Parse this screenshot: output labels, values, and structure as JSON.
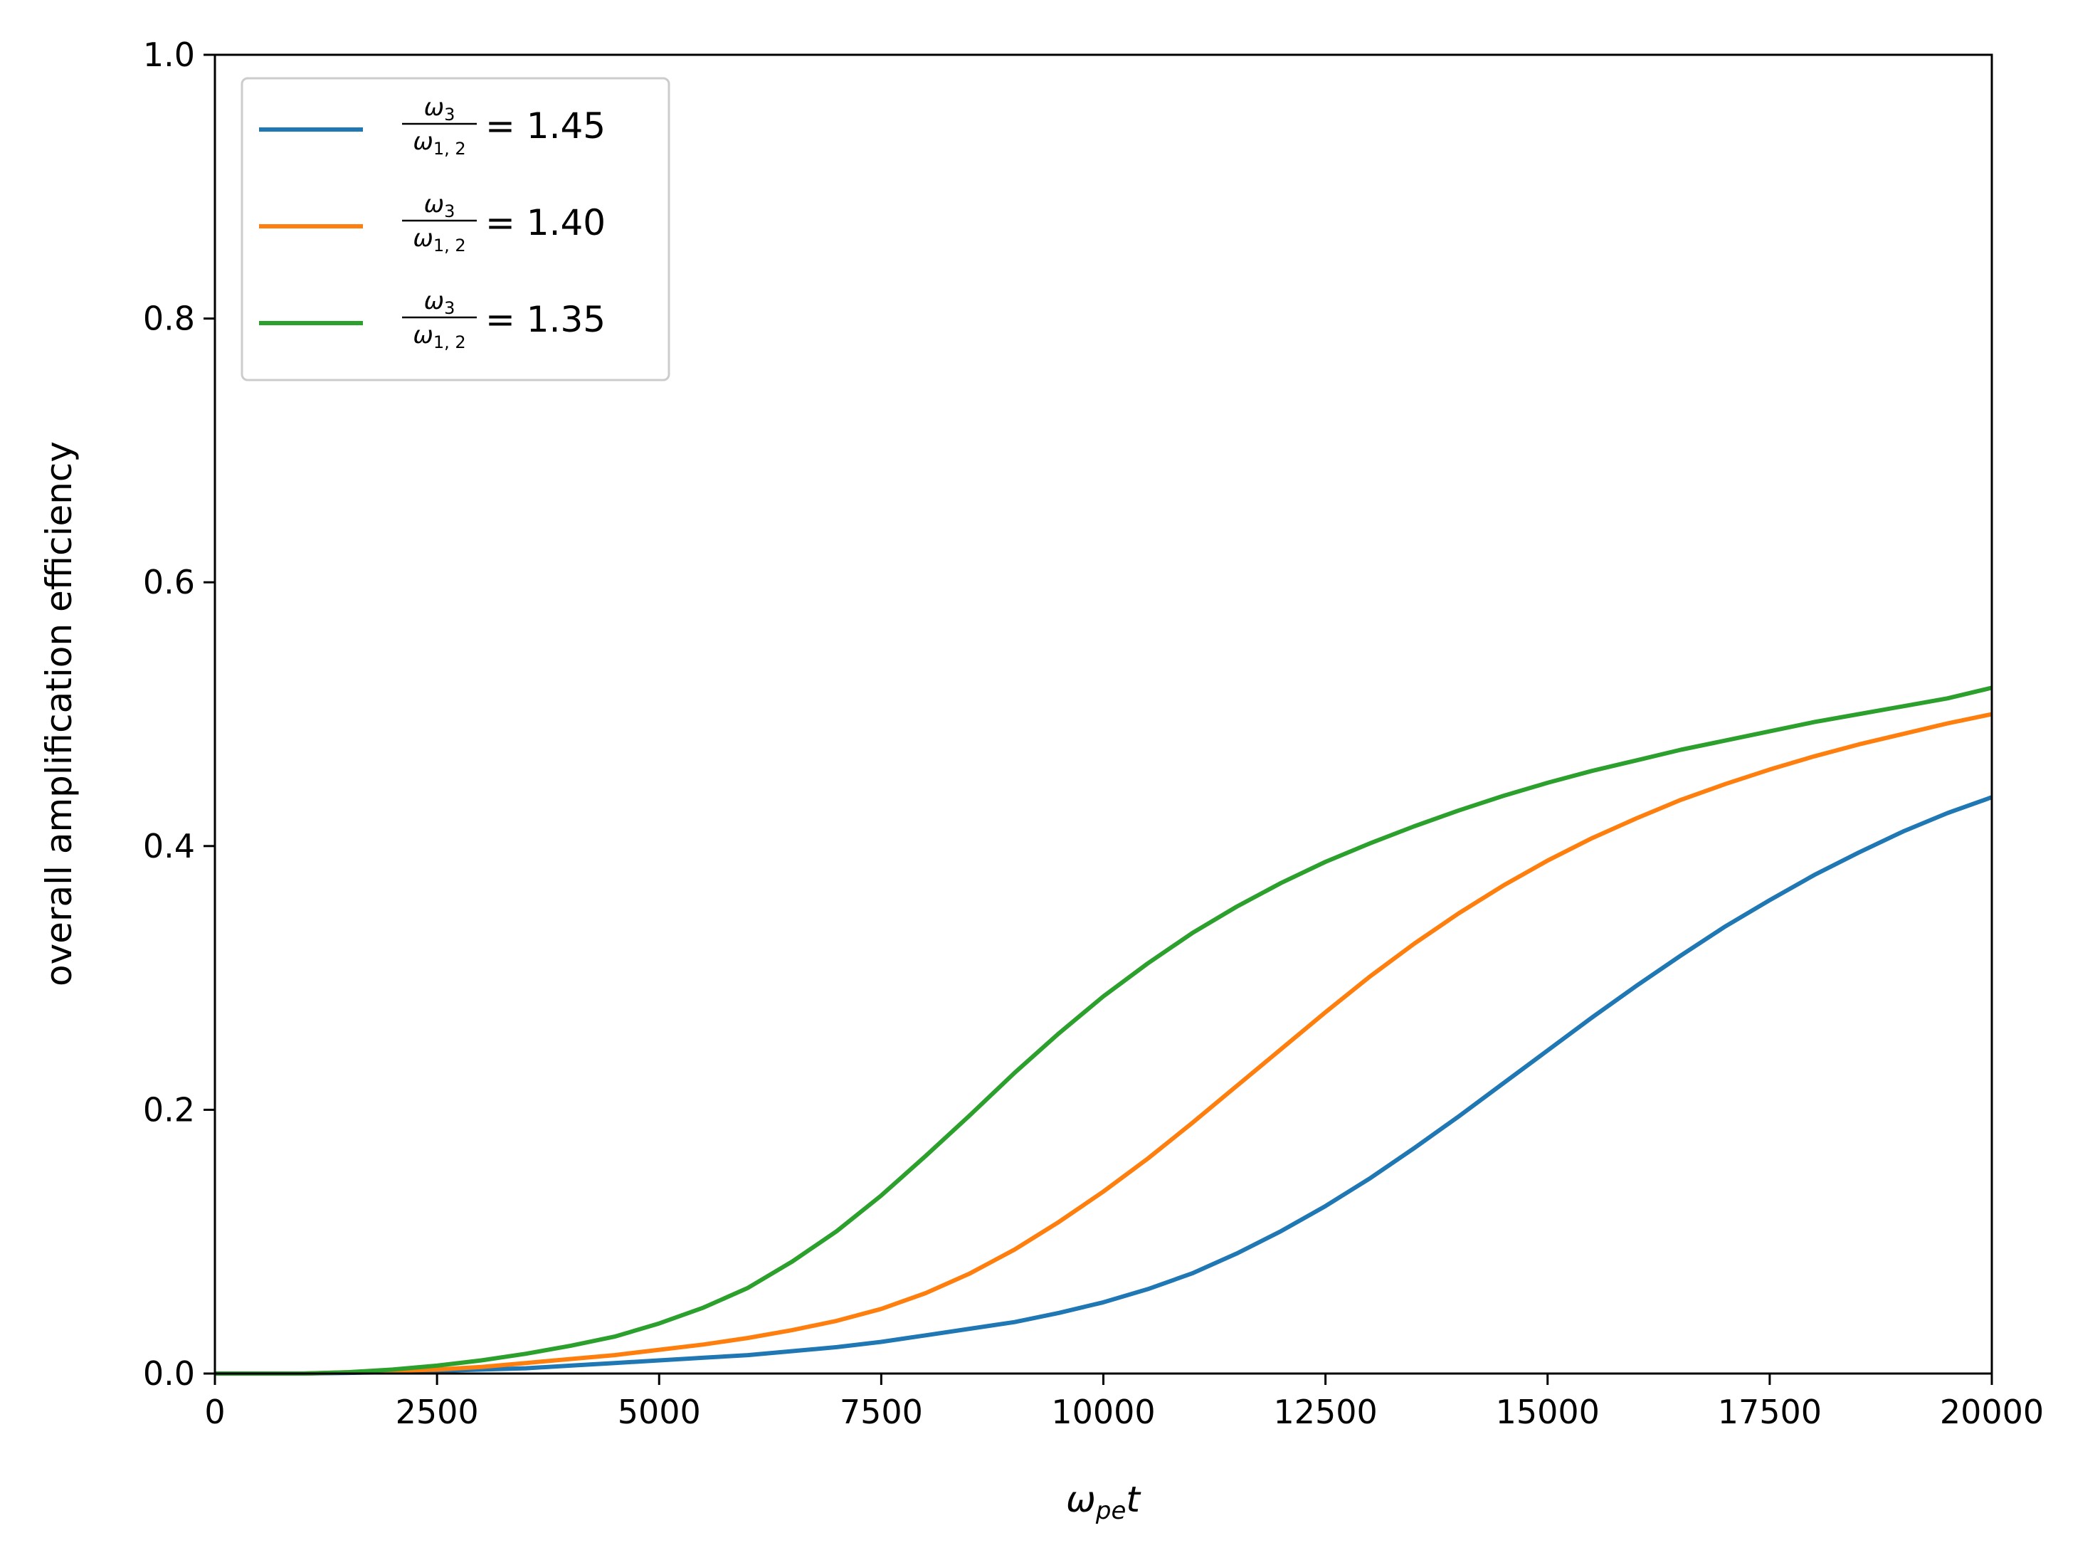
{
  "chart_data": {
    "type": "line",
    "title": "",
    "xlabel": "ω",
    "xlabel_sub": "pe",
    "xlabel_suffix": "t",
    "ylabel": "overall amplification efficiency",
    "xlim": [
      0,
      20000
    ],
    "ylim": [
      0,
      1
    ],
    "x_ticks": [
      0,
      2500,
      5000,
      7500,
      10000,
      12500,
      15000,
      17500,
      20000
    ],
    "y_ticks": [
      0.0,
      0.2,
      0.4,
      0.6,
      0.8,
      1.0
    ],
    "x_tick_labels": [
      "0",
      "2500",
      "5000",
      "7500",
      "10000",
      "12500",
      "15000",
      "17500",
      "20000"
    ],
    "y_tick_labels": [
      "0.0",
      "0.2",
      "0.4",
      "0.6",
      "0.8",
      "1.0"
    ],
    "grid": false,
    "legend_position": "top-left",
    "x": [
      0,
      500,
      1000,
      1500,
      2000,
      2500,
      3000,
      3500,
      4000,
      4500,
      5000,
      5500,
      6000,
      6500,
      7000,
      7500,
      8000,
      8500,
      9000,
      9500,
      10000,
      10500,
      11000,
      11500,
      12000,
      12500,
      13000,
      13500,
      14000,
      14500,
      15000,
      15500,
      16000,
      16500,
      17000,
      17500,
      18000,
      18500,
      19000,
      19500,
      20000
    ],
    "series": [
      {
        "label_num": "ω",
        "label_num_sub": "3",
        "label_den": "ω",
        "label_den_sub": "1, 2",
        "label_value": "= 1.45",
        "color": "#1f77b4",
        "values": [
          0,
          0,
          0,
          0.0005,
          0.001,
          0.002,
          0.003,
          0.004,
          0.006,
          0.008,
          0.01,
          0.012,
          0.014,
          0.017,
          0.02,
          0.024,
          0.029,
          0.034,
          0.039,
          0.046,
          0.054,
          0.064,
          0.076,
          0.091,
          0.108,
          0.127,
          0.148,
          0.171,
          0.195,
          0.22,
          0.245,
          0.27,
          0.294,
          0.317,
          0.339,
          0.359,
          0.378,
          0.395,
          0.411,
          0.425,
          0.437
        ]
      },
      {
        "label_num": "ω",
        "label_num_sub": "3",
        "label_den": "ω",
        "label_den_sub": "1, 2",
        "label_value": "= 1.40",
        "color": "#ff7f0e",
        "values": [
          0,
          0,
          0,
          0.001,
          0.002,
          0.003,
          0.005,
          0.008,
          0.011,
          0.014,
          0.018,
          0.022,
          0.027,
          0.033,
          0.04,
          0.049,
          0.061,
          0.076,
          0.094,
          0.115,
          0.138,
          0.163,
          0.19,
          0.218,
          0.246,
          0.274,
          0.301,
          0.326,
          0.349,
          0.37,
          0.389,
          0.406,
          0.421,
          0.435,
          0.447,
          0.458,
          0.468,
          0.477,
          0.485,
          0.493,
          0.5
        ]
      },
      {
        "label_num": "ω",
        "label_num_sub": "3",
        "label_den": "ω",
        "label_den_sub": "1, 2",
        "label_value": "= 1.35",
        "color": "#2ca02c",
        "values": [
          0,
          0,
          0,
          0.001,
          0.003,
          0.006,
          0.01,
          0.015,
          0.021,
          0.028,
          0.038,
          0.05,
          0.065,
          0.085,
          0.108,
          0.135,
          0.165,
          0.196,
          0.228,
          0.258,
          0.286,
          0.311,
          0.334,
          0.354,
          0.372,
          0.388,
          0.402,
          0.415,
          0.427,
          0.438,
          0.448,
          0.457,
          0.465,
          0.473,
          0.48,
          0.487,
          0.494,
          0.5,
          0.506,
          0.512,
          0.52
        ]
      }
    ]
  }
}
